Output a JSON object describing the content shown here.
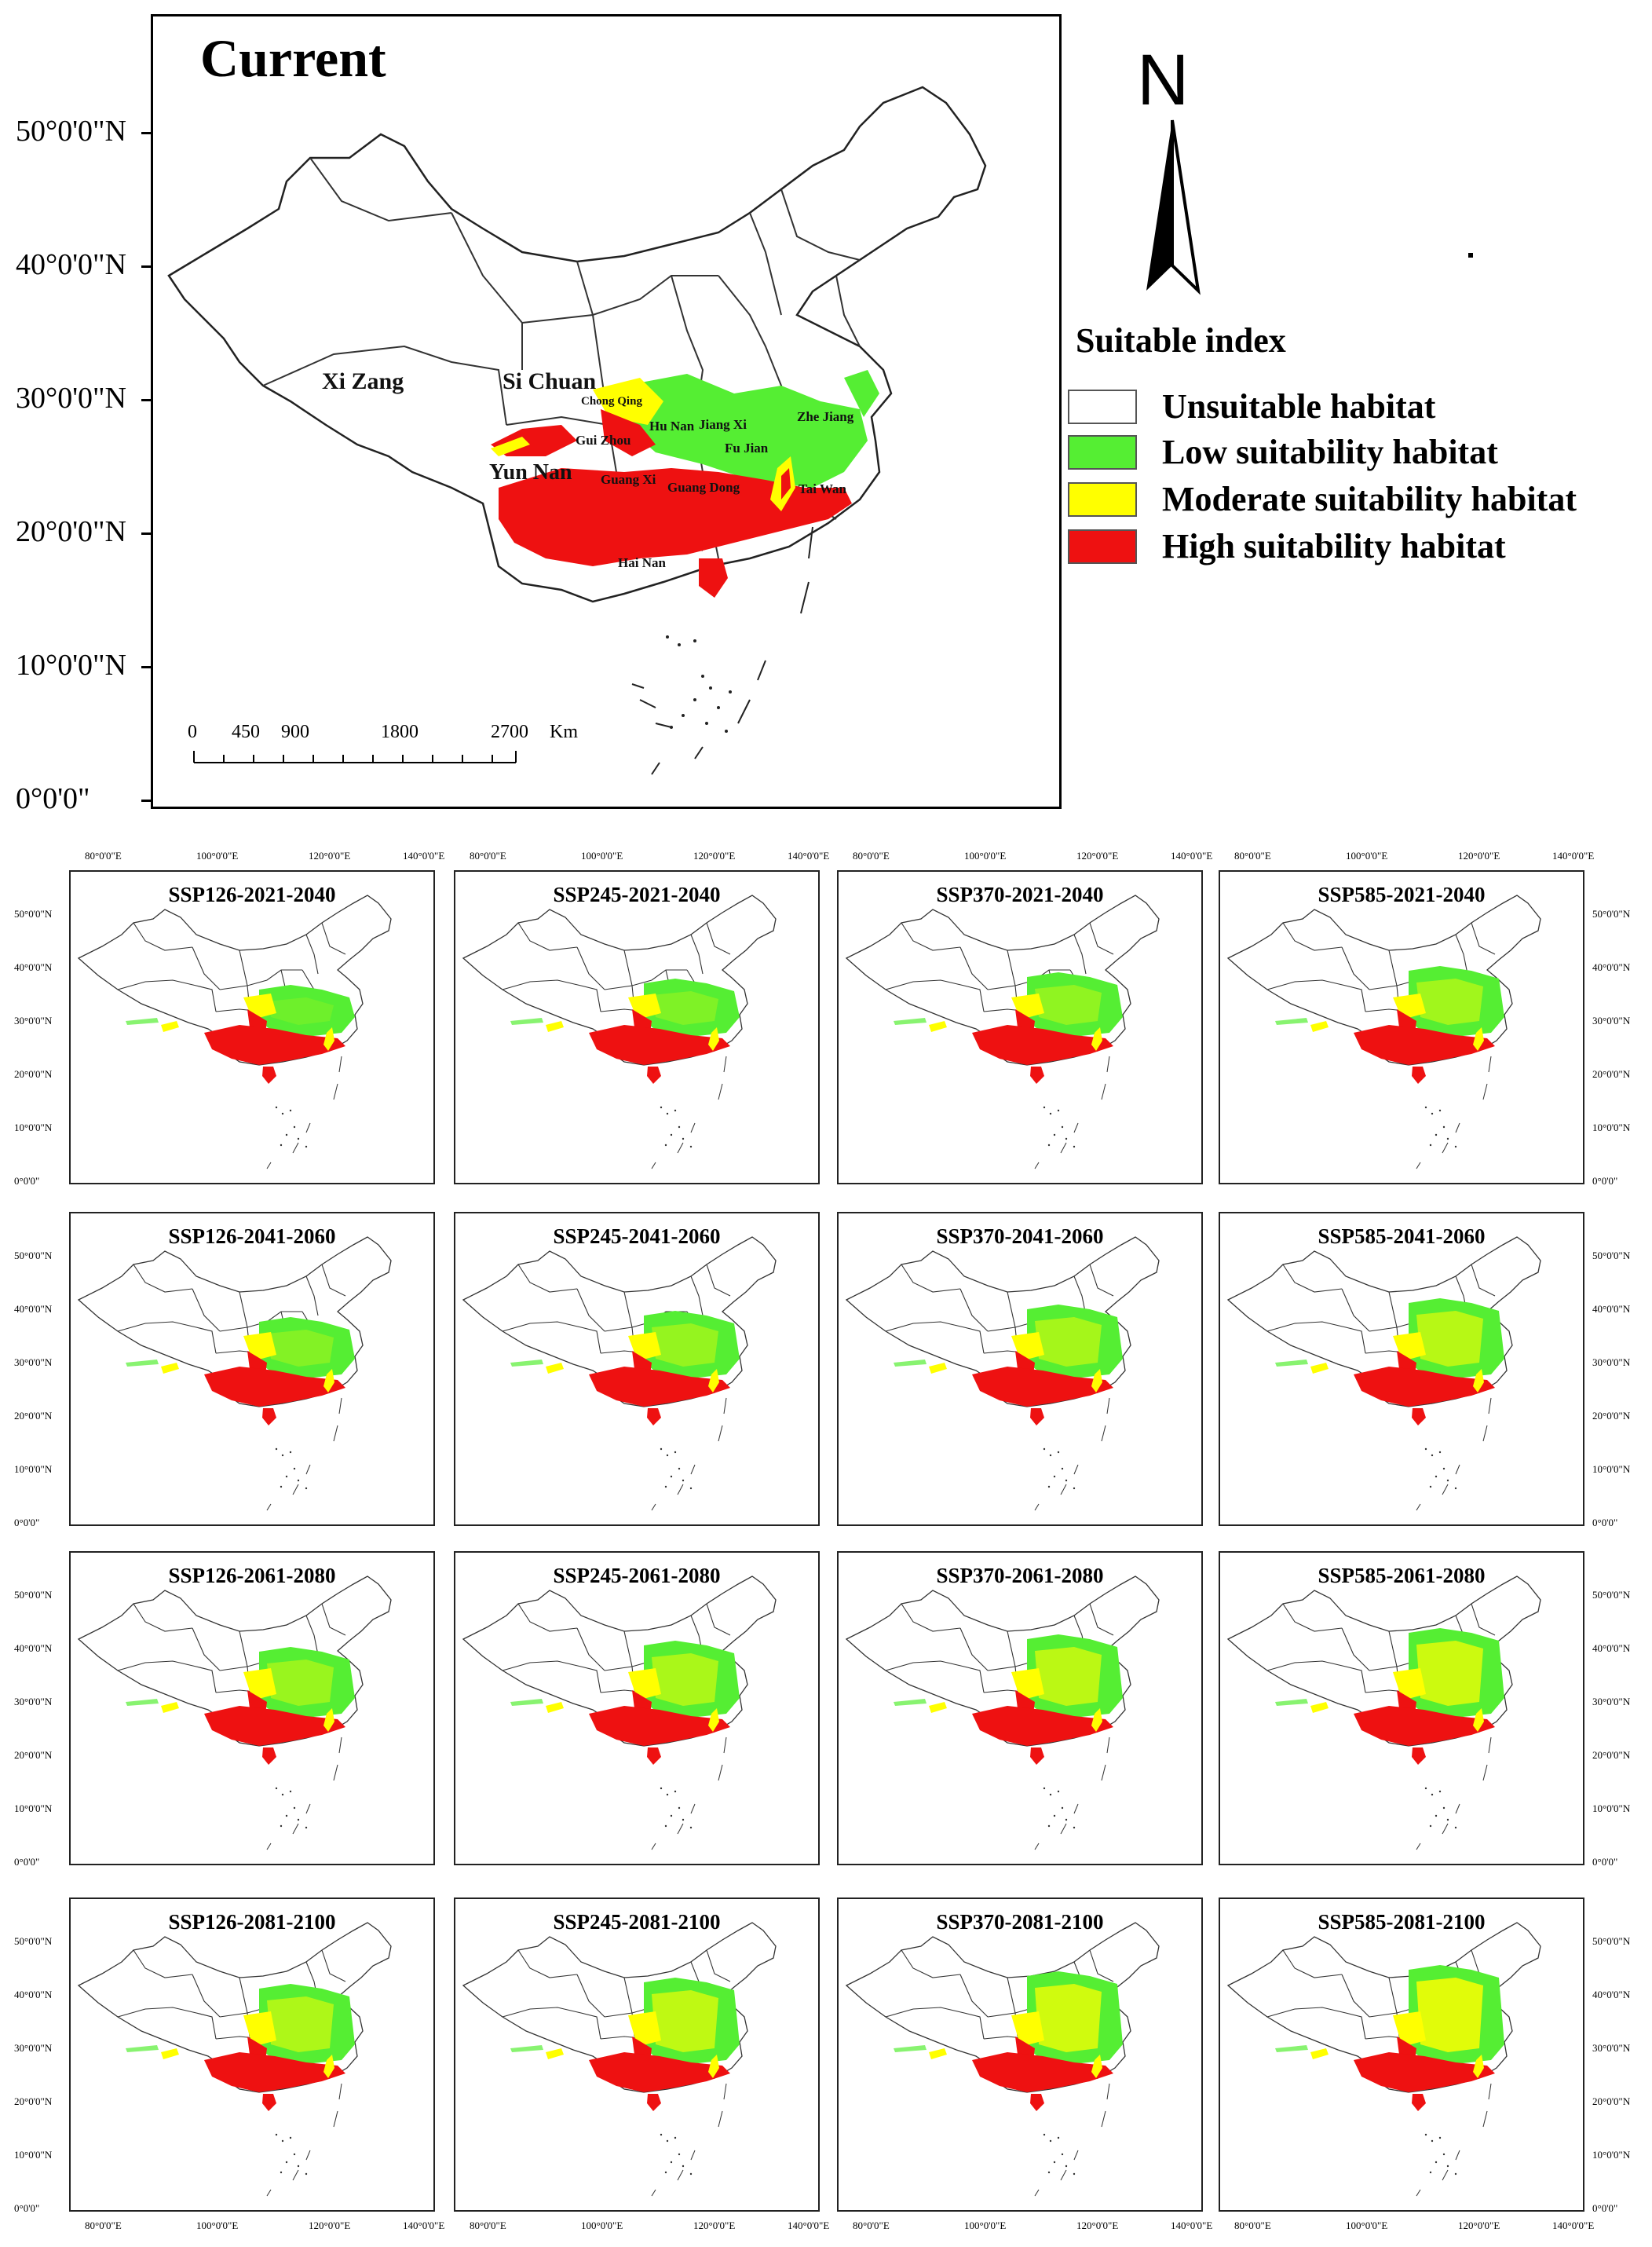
{
  "main_map": {
    "title": "Current",
    "lat_labels": [
      "50°0'0\"N",
      "40°0'0\"N",
      "30°0'0\"N",
      "20°0'0\"N",
      "10°0'0\"N",
      "0°0'0\""
    ],
    "regions": [
      "Xi Zang",
      "Si Chuan",
      "Chong Qing",
      "Hu Nan",
      "Jiang Xi",
      "Gui Zhou",
      "Fu Jian",
      "Zhe Jiang",
      "Yun Nan",
      "Guang Xi",
      "Guang Dong",
      "Tai Wan",
      "Hai Nan"
    ],
    "scale": {
      "ticks": [
        "0",
        "450",
        "900",
        "1800",
        "2700"
      ],
      "unit": "Km"
    }
  },
  "north_arrow": {
    "letter": "N"
  },
  "legend": {
    "title": "Suitable index",
    "items": [
      {
        "label": "Unsuitable habitat",
        "color": "#ffffff"
      },
      {
        "label": "Low suitability habitat",
        "color": "#55ee33"
      },
      {
        "label": "Moderate suitability habitat",
        "color": "#ffff00"
      },
      {
        "label": "High suitability habitat",
        "color": "#ee1111"
      }
    ]
  },
  "lon_labels": [
    "80°0'0\"E",
    "100°0'0\"E",
    "120°0'0\"E",
    "140°0'0\"E"
  ],
  "small_lat_labels": [
    "50°0'0\"N",
    "40°0'0\"N",
    "30°0'0\"N",
    "20°0'0\"N",
    "10°0'0\"N",
    "0°0'0\""
  ],
  "panels": [
    {
      "title": "SSP126-2021-2040"
    },
    {
      "title": "SSP245-2021-2040"
    },
    {
      "title": "SSP370-2021-2040"
    },
    {
      "title": "SSP585-2021-2040"
    },
    {
      "title": "SSP126-2041-2060"
    },
    {
      "title": "SSP245-2041-2060"
    },
    {
      "title": "SSP370-2041-2060"
    },
    {
      "title": "SSP585-2041-2060"
    },
    {
      "title": "SSP126-2061-2080"
    },
    {
      "title": "SSP245-2061-2080"
    },
    {
      "title": "SSP370-2061-2080"
    },
    {
      "title": "SSP585-2061-2080"
    },
    {
      "title": "SSP126-2081-2100"
    },
    {
      "title": "SSP245-2081-2100"
    },
    {
      "title": "SSP370-2081-2100"
    },
    {
      "title": "SSP585-2081-2100"
    }
  ]
}
